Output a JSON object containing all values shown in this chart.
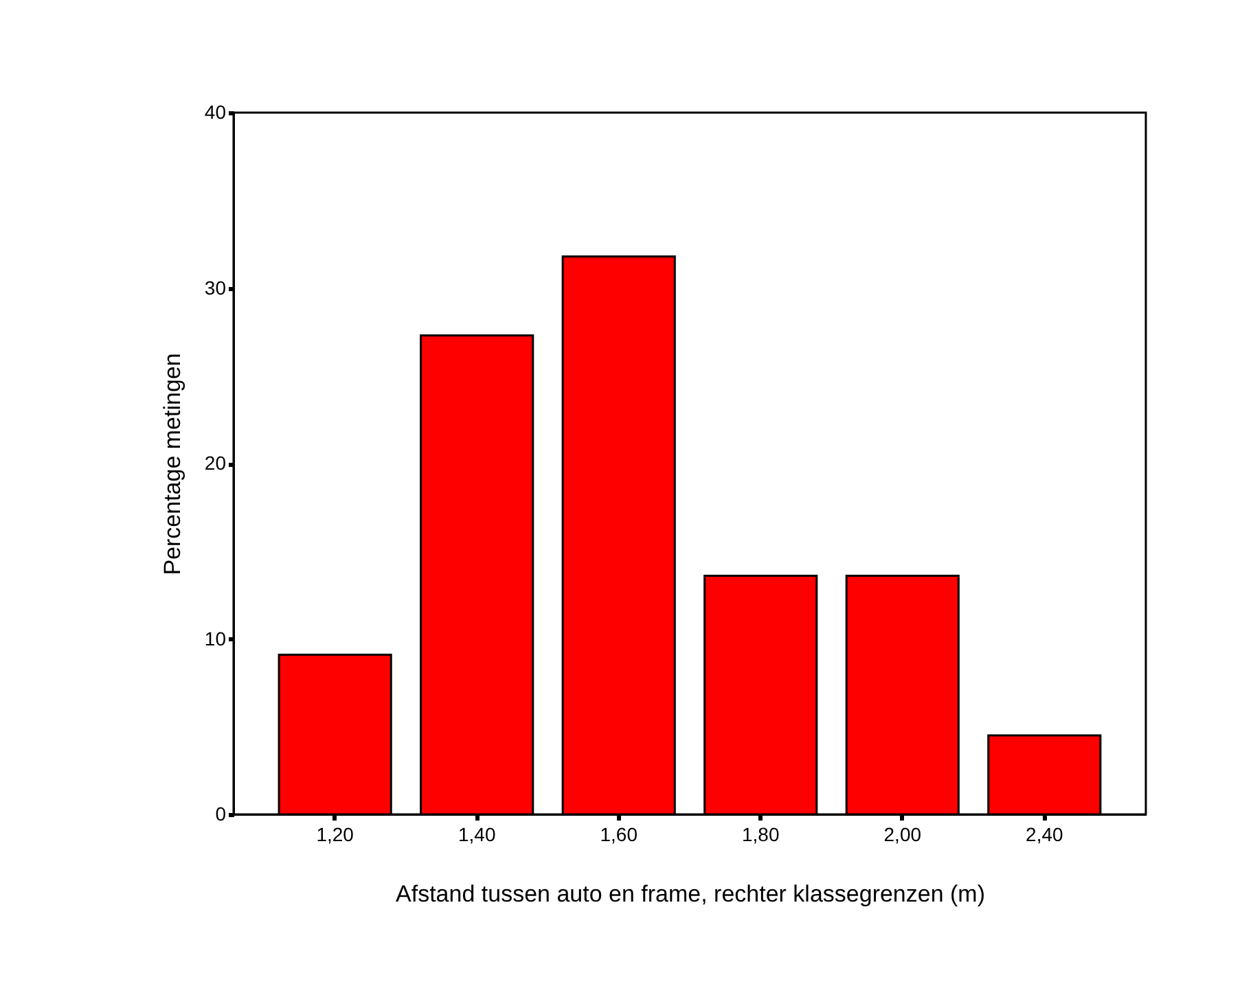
{
  "chart_data": {
    "type": "bar",
    "categories": [
      "1,20",
      "1,40",
      "1,60",
      "1,80",
      "2,00",
      "2,40"
    ],
    "values": [
      9.1,
      27.3,
      31.8,
      13.6,
      13.6,
      4.5
    ],
    "color": "#ff0000",
    "xlabel": "Afstand tussen auto en frame, rechter klassegrenzen (m)",
    "ylabel": "Percentage metingen",
    "ylim": [
      0,
      40
    ],
    "yticks": [
      0,
      10,
      20,
      30,
      40
    ],
    "grid": false
  }
}
